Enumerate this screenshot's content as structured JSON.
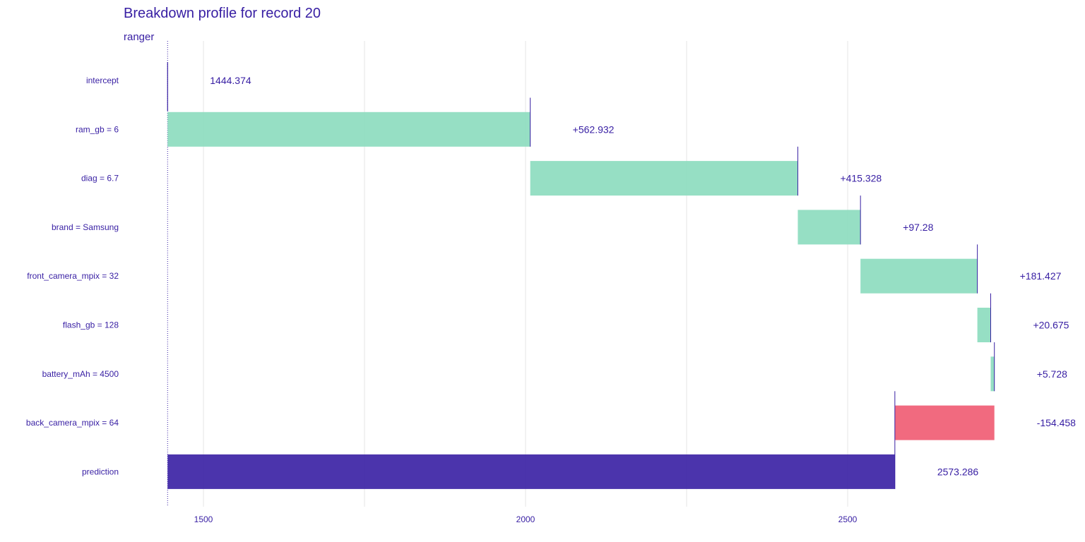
{
  "chart_data": {
    "type": "bar",
    "subtype": "waterfall",
    "title": "Breakdown profile for record 20",
    "subtitle": "ranger",
    "xlim": [
      1440,
      2690
    ],
    "x_ticks": [
      1500,
      2000,
      2500
    ],
    "x_tick_labels": [
      "1500",
      "2000",
      "2500"
    ],
    "grid": true,
    "colors": {
      "positive": "#8bdcbe",
      "negative": "#f05a71",
      "prediction": "#371ea3",
      "text": "#371ea3",
      "connector": "#371ea3"
    },
    "rows": [
      {
        "variable": "intercept",
        "start": 1444.374,
        "end": 1444.374,
        "label": "1444.374",
        "kind": "intercept"
      },
      {
        "variable": "ram_gb = 6",
        "start": 1444.374,
        "end": 2007.306,
        "label": "+562.932",
        "kind": "positive"
      },
      {
        "variable": "diag = 6.7",
        "start": 2007.306,
        "end": 2422.634,
        "label": "+415.328",
        "kind": "positive"
      },
      {
        "variable": "brand = Samsung",
        "start": 2422.634,
        "end": 2519.914,
        "label": "+97.28",
        "kind": "positive"
      },
      {
        "variable": "front_camera_mpix = 32",
        "start": 2519.914,
        "end": 2701.341,
        "label": "+181.427",
        "kind": "positive"
      },
      {
        "variable": "flash_gb = 128",
        "start": 2701.341,
        "end": 2722.016,
        "label": "+20.675",
        "kind": "positive"
      },
      {
        "variable": "battery_mAh = 4500",
        "start": 2722.016,
        "end": 2727.744,
        "label": "+5.728",
        "kind": "positive"
      },
      {
        "variable": "back_camera_mpix = 64",
        "start": 2727.744,
        "end": 2573.286,
        "label": "-154.458",
        "kind": "negative"
      },
      {
        "variable": "prediction",
        "start": 1444.374,
        "end": 2573.286,
        "label": "2573.286",
        "kind": "prediction"
      }
    ]
  }
}
